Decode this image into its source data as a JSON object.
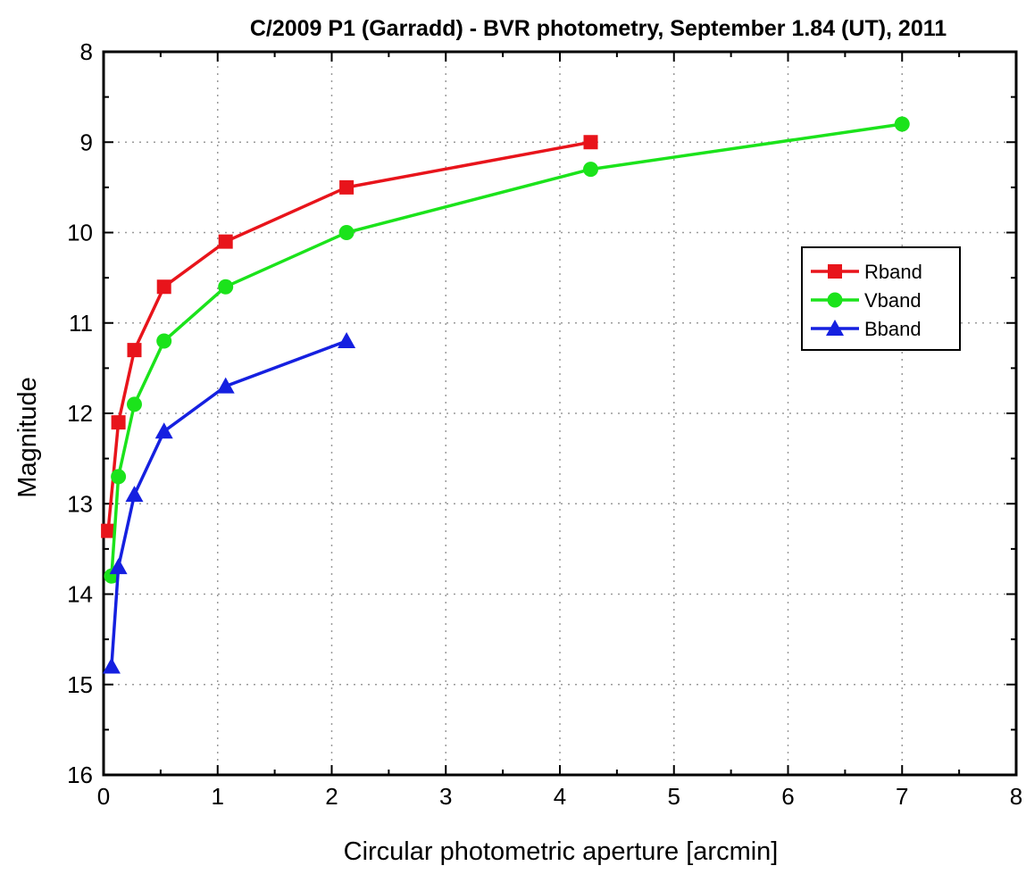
{
  "chart_data": {
    "type": "line",
    "title": "C/2009 P1 (Garradd) - BVR photometry, September 1.84 (UT), 2011",
    "xlabel": "Circular photometric aperture [arcmin]",
    "ylabel": "Magnitude",
    "xlim": [
      0,
      8
    ],
    "ylim": [
      16,
      8
    ],
    "y_inverted": true,
    "x_ticks": [
      "0",
      "1",
      "2",
      "3",
      "4",
      "5",
      "6",
      "7",
      "8"
    ],
    "y_ticks": [
      "8",
      "9",
      "10",
      "11",
      "12",
      "13",
      "14",
      "15",
      "16"
    ],
    "grid": true,
    "legend_position": "right",
    "series": [
      {
        "name": "Rband",
        "color": "#e8141b",
        "marker": "square",
        "x": [
          0.04,
          0.13,
          0.27,
          0.53,
          1.07,
          2.13,
          4.27
        ],
        "y": [
          13.3,
          12.1,
          11.3,
          10.6,
          10.1,
          9.5,
          9.0
        ]
      },
      {
        "name": "Vband",
        "color": "#1be31b",
        "marker": "circle",
        "x": [
          0.07,
          0.13,
          0.27,
          0.53,
          1.07,
          2.13,
          4.27,
          7.0
        ],
        "y": [
          13.8,
          12.7,
          11.9,
          11.2,
          10.6,
          10.0,
          9.3,
          8.8
        ]
      },
      {
        "name": "Bband",
        "color": "#1520e0",
        "marker": "triangle",
        "x": [
          0.07,
          0.13,
          0.27,
          0.53,
          1.07,
          2.13
        ],
        "y": [
          14.8,
          13.7,
          12.9,
          12.2,
          11.7,
          11.2
        ]
      }
    ]
  }
}
